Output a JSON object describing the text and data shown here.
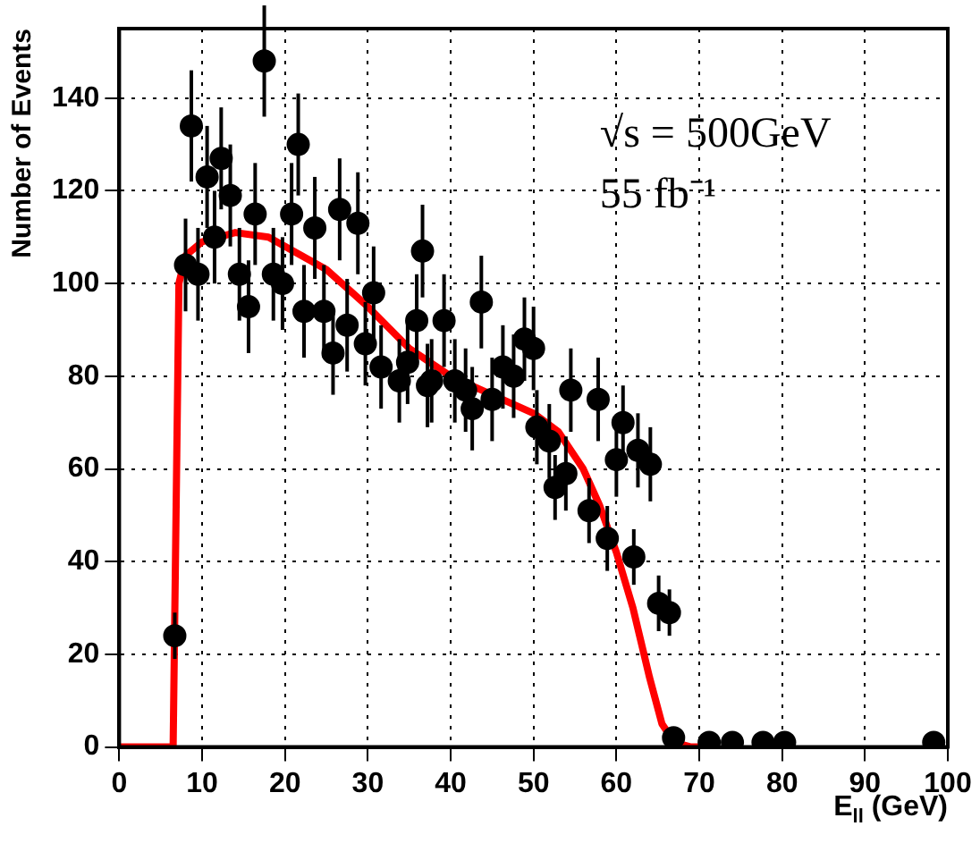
{
  "chart_data": {
    "type": "scatter",
    "xlabel": "E$_{ll}$ (GeV)",
    "ylabel": "Number of Events",
    "xlim": [
      0,
      100
    ],
    "xticks": [
      0,
      10,
      20,
      30,
      40,
      50,
      60,
      70,
      80,
      90,
      100
    ],
    "ylim": [
      0,
      155
    ],
    "yticks": [
      0,
      20,
      40,
      60,
      80,
      100,
      120,
      140
    ],
    "grid": true,
    "legend": false,
    "marker": "circle",
    "annotations": [
      "√s = 500GeV",
      "55 fb⁻¹"
    ],
    "series": [
      {
        "color": "#000000",
        "x": [
          6.7,
          8.0,
          8.7,
          9.5,
          10.6,
          11.5,
          12.3,
          13.4,
          14.5,
          15.6,
          16.4,
          17.5,
          18.6,
          19.7,
          20.8,
          21.6,
          22.3,
          23.6,
          24.7,
          25.8,
          26.6,
          27.5,
          28.8,
          29.7,
          30.7,
          31.6,
          33.8,
          34.8,
          35.9,
          36.6,
          37.2,
          37.7,
          39.2,
          40.5,
          41.8,
          42.6,
          43.7,
          45.0,
          46.3,
          47.6,
          48.9,
          50.0,
          50.4,
          51.9,
          52.6,
          53.9,
          54.5,
          56.7,
          57.8,
          58.9,
          60.0,
          60.8,
          62.1,
          62.6,
          64.1,
          65.1,
          66.4,
          66.9,
          71.2,
          74.0,
          77.7,
          80.3,
          98.3
        ],
        "values": [
          24,
          104,
          134,
          102,
          123,
          110,
          127,
          119,
          102,
          95,
          115,
          148,
          102,
          100,
          115,
          130,
          94,
          112,
          94,
          85,
          116,
          91,
          113,
          87,
          98,
          82,
          79,
          83,
          92,
          107,
          78,
          79,
          92,
          79,
          77,
          73,
          96,
          75,
          82,
          80,
          88,
          86,
          69,
          66,
          56,
          59,
          77,
          51,
          75,
          45,
          62,
          70,
          41,
          64,
          61,
          31,
          29,
          2,
          1,
          1,
          1,
          1,
          1
        ],
        "errors": [
          5,
          10,
          12,
          10,
          11,
          10,
          11,
          11,
          10,
          10,
          11,
          12,
          10,
          10,
          11,
          11,
          10,
          11,
          10,
          9,
          11,
          10,
          11,
          9,
          10,
          9,
          9,
          9,
          10,
          10,
          9,
          9,
          10,
          9,
          9,
          9,
          10,
          9,
          9,
          9,
          9,
          9,
          8,
          8,
          7,
          8,
          9,
          7,
          9,
          7,
          8,
          8,
          6,
          8,
          8,
          6,
          5,
          1,
          1,
          1,
          1,
          1,
          1
        ]
      },
      {
        "type": "line",
        "color": "#ff0000",
        "marker": "none",
        "x": [
          0,
          6.5,
          7.2,
          8,
          10,
          14,
          18,
          25,
          30,
          35,
          40,
          45,
          50,
          53,
          56,
          58,
          60,
          62,
          64,
          65.5,
          67,
          69,
          70,
          74,
          77,
          80
        ],
        "values": [
          0,
          0,
          100,
          106,
          109,
          111,
          110,
          103,
          95,
          86,
          80,
          76,
          72,
          68,
          60,
          52,
          42,
          30,
          15,
          5,
          1,
          0,
          0,
          null,
          0,
          0
        ]
      }
    ]
  }
}
